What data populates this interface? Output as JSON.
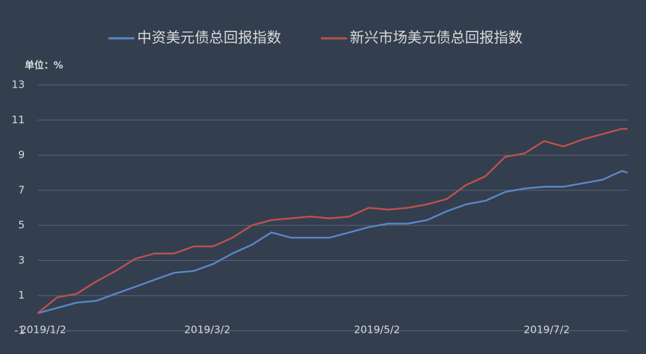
{
  "chart_data": {
    "type": "line",
    "y_unit_label": "单位：%",
    "x": [
      "2019-01-02",
      "2019-01-09",
      "2019-01-16",
      "2019-01-23",
      "2019-01-30",
      "2019-02-06",
      "2019-02-13",
      "2019-02-20",
      "2019-02-27",
      "2019-03-06",
      "2019-03-13",
      "2019-03-20",
      "2019-03-27",
      "2019-04-03",
      "2019-04-10",
      "2019-04-17",
      "2019-04-24",
      "2019-05-01",
      "2019-05-08",
      "2019-05-15",
      "2019-05-22",
      "2019-05-29",
      "2019-06-05",
      "2019-06-12",
      "2019-06-19",
      "2019-06-26",
      "2019-07-03",
      "2019-07-10",
      "2019-07-17",
      "2019-07-24",
      "2019-07-31",
      "2019-08-02"
    ],
    "series": [
      {
        "name": "中资美元债总回报指数",
        "color": "#5b87c7",
        "values": [
          0.0,
          0.3,
          0.6,
          0.7,
          1.1,
          1.5,
          1.9,
          2.3,
          2.4,
          2.8,
          3.4,
          3.9,
          4.6,
          4.3,
          4.3,
          4.3,
          4.6,
          4.9,
          5.1,
          5.1,
          5.3,
          5.8,
          6.2,
          6.4,
          6.9,
          7.1,
          7.2,
          7.2,
          7.4,
          7.6,
          8.1,
          8.0
        ]
      },
      {
        "name": "新兴市场美元债总回报指数",
        "color": "#c0504d",
        "values": [
          0.0,
          0.9,
          1.1,
          1.8,
          2.4,
          3.1,
          3.4,
          3.4,
          3.8,
          3.8,
          4.3,
          5.0,
          5.3,
          5.4,
          5.5,
          5.4,
          5.5,
          6.0,
          5.9,
          6.0,
          6.2,
          6.5,
          7.3,
          7.8,
          8.9,
          9.1,
          9.8,
          9.5,
          9.9,
          10.2,
          10.5,
          10.5
        ]
      }
    ],
    "xlim": [
      "2019-01-02",
      "2019-08-02"
    ],
    "xticks": [
      {
        "value": "2019-01-02",
        "label": "2019/1/2"
      },
      {
        "value": "2019-03-02",
        "label": "2019/3/2"
      },
      {
        "value": "2019-05-02",
        "label": "2019/5/2"
      },
      {
        "value": "2019-07-02",
        "label": "2019/7/2"
      }
    ],
    "ylim": [
      -1,
      13
    ],
    "yticks": [
      -1,
      1,
      3,
      5,
      7,
      9,
      11,
      13
    ],
    "grid": true
  }
}
